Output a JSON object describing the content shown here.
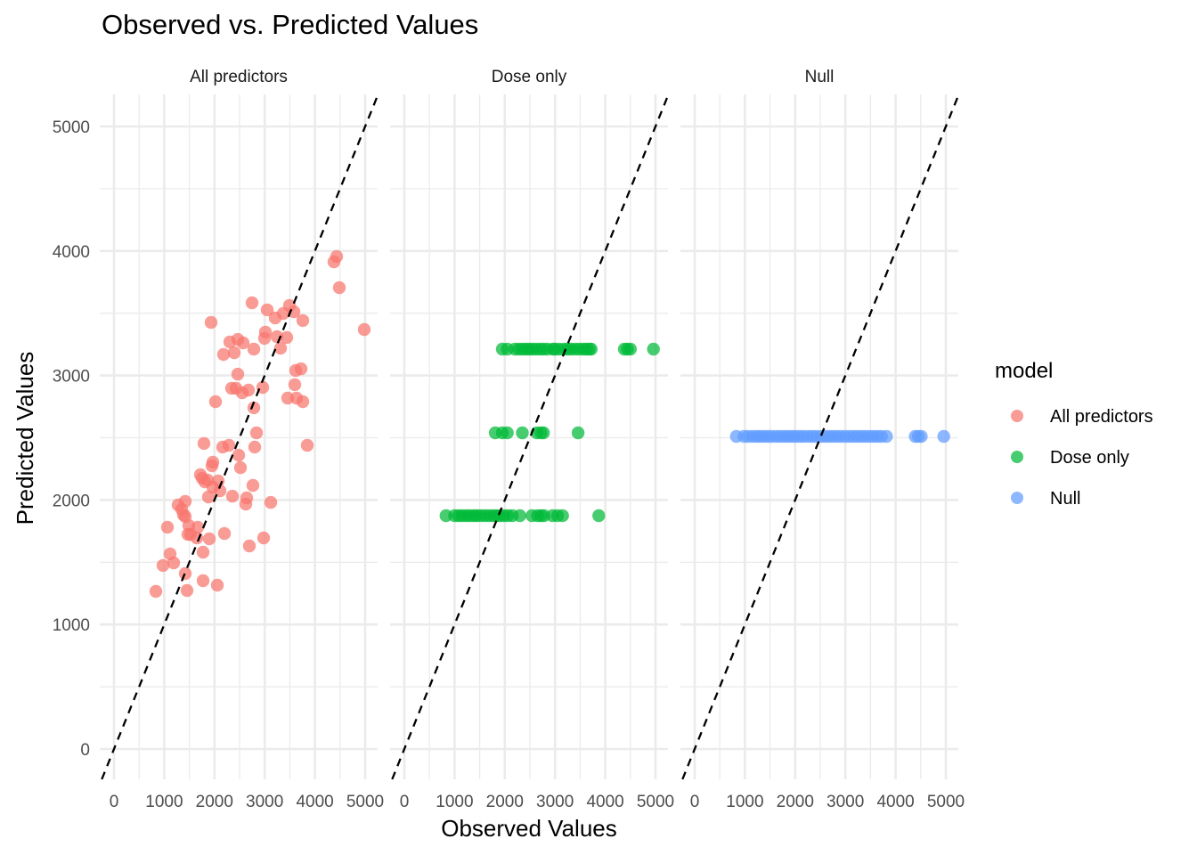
{
  "chart_data": {
    "type": "scatter",
    "title": "Observed vs. Predicted Values",
    "xlabel": "Observed Values",
    "ylabel": "Predicted Values",
    "xlim": [
      -300,
      5250
    ],
    "ylim": [
      -250,
      5200
    ],
    "x_ticks": [
      0,
      1000,
      2000,
      3000,
      4000,
      5000
    ],
    "y_ticks": [
      0,
      1000,
      2000,
      3000,
      4000,
      5000
    ],
    "x_tick_labels": [
      "0",
      "1000",
      "2000",
      "3000",
      "4000",
      "5000"
    ],
    "y_tick_labels": [
      "0",
      "1000",
      "2000",
      "3000",
      "4000",
      "5000"
    ],
    "grid": true,
    "reference_line": {
      "type": "identity",
      "style": "dashed",
      "color": "#000000",
      "intercept": 0,
      "slope": 1
    },
    "legend": {
      "title": "model",
      "position": "right",
      "entries": [
        {
          "label": "All predictors",
          "color": "#F8766D"
        },
        {
          "label": "Dose only",
          "color": "#00BA38"
        },
        {
          "label": "Null",
          "color": "#619CFF"
        }
      ]
    },
    "facets": [
      {
        "name": "All predictors",
        "color": "#F8766D",
        "points": [
          [
            833,
            1266
          ],
          [
            975,
            1474
          ],
          [
            1064,
            1781
          ],
          [
            1117,
            1567
          ],
          [
            1188,
            1495
          ],
          [
            1277,
            1960
          ],
          [
            1348,
            1924
          ],
          [
            1383,
            1881
          ],
          [
            1418,
            1989
          ],
          [
            1418,
            1867
          ],
          [
            1418,
            1409
          ],
          [
            1454,
            1273
          ],
          [
            1472,
            1724
          ],
          [
            1489,
            1795
          ],
          [
            1525,
            1724
          ],
          [
            1649,
            1695
          ],
          [
            1667,
            1781
          ],
          [
            1720,
            2203
          ],
          [
            1755,
            2175
          ],
          [
            1773,
            1581
          ],
          [
            1773,
            1352
          ],
          [
            1791,
            2454
          ],
          [
            1809,
            2146
          ],
          [
            1862,
            2160
          ],
          [
            1879,
            2024
          ],
          [
            1897,
            1688
          ],
          [
            1933,
            3426
          ],
          [
            1950,
            2275
          ],
          [
            1968,
            2303
          ],
          [
            1968,
            2103
          ],
          [
            2021,
            2790
          ],
          [
            2057,
            1316
          ],
          [
            2075,
            2153
          ],
          [
            2110,
            2074
          ],
          [
            2163,
            2425
          ],
          [
            2181,
            3169
          ],
          [
            2199,
            1731
          ],
          [
            2287,
            2439
          ],
          [
            2305,
            3269
          ],
          [
            2340,
            2897
          ],
          [
            2358,
            2031
          ],
          [
            2394,
            3183
          ],
          [
            2429,
            2897
          ],
          [
            2465,
            3290
          ],
          [
            2465,
            3011
          ],
          [
            2482,
            2360
          ],
          [
            2518,
            2260
          ],
          [
            2553,
            2861
          ],
          [
            2571,
            3262
          ],
          [
            2624,
            1967
          ],
          [
            2642,
            2017
          ],
          [
            2677,
            2883
          ],
          [
            2695,
            1631
          ],
          [
            2748,
            3584
          ],
          [
            2766,
            2117
          ],
          [
            2784,
            2740
          ],
          [
            2784,
            3212
          ],
          [
            2801,
            2425
          ],
          [
            2837,
            2539
          ],
          [
            2961,
            2904
          ],
          [
            2979,
            1695
          ],
          [
            2996,
            3298
          ],
          [
            3014,
            3348
          ],
          [
            3050,
            3527
          ],
          [
            3121,
            1981
          ],
          [
            3209,
            3462
          ],
          [
            3245,
            3312
          ],
          [
            3316,
            3219
          ],
          [
            3369,
            3498
          ],
          [
            3440,
            3305
          ],
          [
            3457,
            2818
          ],
          [
            3493,
            3562
          ],
          [
            3582,
            3512
          ],
          [
            3599,
            2926
          ],
          [
            3617,
            3040
          ],
          [
            3635,
            2818
          ],
          [
            3723,
            3054
          ],
          [
            3759,
            3441
          ],
          [
            3759,
            2790
          ],
          [
            3848,
            2439
          ],
          [
            4379,
            3913
          ],
          [
            4433,
            3956
          ],
          [
            4486,
            3705
          ],
          [
            4982,
            3369
          ]
        ]
      },
      {
        "name": "Dose only",
        "color": "#00BA38",
        "points": [
          [
            1950,
            3212
          ],
          [
            2050,
            3212
          ],
          [
            2200,
            3212
          ],
          [
            2280,
            3212
          ],
          [
            2350,
            3212
          ],
          [
            2420,
            3212
          ],
          [
            2480,
            3212
          ],
          [
            2550,
            3212
          ],
          [
            2620,
            3212
          ],
          [
            2700,
            3212
          ],
          [
            2770,
            3212
          ],
          [
            2850,
            3212
          ],
          [
            2960,
            3212
          ],
          [
            3000,
            3212
          ],
          [
            3080,
            3212
          ],
          [
            3180,
            3212
          ],
          [
            3250,
            3212
          ],
          [
            3320,
            3212
          ],
          [
            3400,
            3212
          ],
          [
            3480,
            3212
          ],
          [
            3560,
            3212
          ],
          [
            3620,
            3212
          ],
          [
            3680,
            3212
          ],
          [
            3720,
            3212
          ],
          [
            4380,
            3212
          ],
          [
            4440,
            3212
          ],
          [
            4500,
            3212
          ],
          [
            4960,
            3212
          ],
          [
            1810,
            2539
          ],
          [
            1950,
            2539
          ],
          [
            2050,
            2539
          ],
          [
            2350,
            2539
          ],
          [
            2640,
            2539
          ],
          [
            2720,
            2539
          ],
          [
            2770,
            2539
          ],
          [
            3460,
            2539
          ],
          [
            830,
            1874
          ],
          [
            1000,
            1874
          ],
          [
            1080,
            1874
          ],
          [
            1150,
            1874
          ],
          [
            1230,
            1874
          ],
          [
            1300,
            1874
          ],
          [
            1380,
            1874
          ],
          [
            1440,
            1874
          ],
          [
            1520,
            1874
          ],
          [
            1600,
            1874
          ],
          [
            1680,
            1874
          ],
          [
            1760,
            1874
          ],
          [
            1830,
            1874
          ],
          [
            1900,
            1874
          ],
          [
            1980,
            1874
          ],
          [
            2060,
            1874
          ],
          [
            2150,
            1874
          ],
          [
            2300,
            1874
          ],
          [
            2540,
            1874
          ],
          [
            2650,
            1874
          ],
          [
            2720,
            1874
          ],
          [
            2780,
            1874
          ],
          [
            2950,
            1874
          ],
          [
            3050,
            1874
          ],
          [
            3150,
            1874
          ],
          [
            3870,
            1874
          ]
        ]
      },
      {
        "name": "Null",
        "color": "#619CFF",
        "points": [
          [
            830,
            2511
          ],
          [
            980,
            2511
          ],
          [
            1060,
            2511
          ],
          [
            1150,
            2511
          ],
          [
            1230,
            2511
          ],
          [
            1300,
            2511
          ],
          [
            1380,
            2511
          ],
          [
            1460,
            2511
          ],
          [
            1530,
            2511
          ],
          [
            1620,
            2511
          ],
          [
            1700,
            2511
          ],
          [
            1780,
            2511
          ],
          [
            1850,
            2511
          ],
          [
            1930,
            2511
          ],
          [
            2000,
            2511
          ],
          [
            2080,
            2511
          ],
          [
            2160,
            2511
          ],
          [
            2250,
            2511
          ],
          [
            2330,
            2511
          ],
          [
            2410,
            2511
          ],
          [
            2500,
            2511
          ],
          [
            2580,
            2511
          ],
          [
            2660,
            2511
          ],
          [
            2740,
            2511
          ],
          [
            2820,
            2511
          ],
          [
            2900,
            2511
          ],
          [
            2990,
            2511
          ],
          [
            3080,
            2511
          ],
          [
            3160,
            2511
          ],
          [
            3240,
            2511
          ],
          [
            3320,
            2511
          ],
          [
            3400,
            2511
          ],
          [
            3480,
            2511
          ],
          [
            3560,
            2511
          ],
          [
            3640,
            2511
          ],
          [
            3720,
            2511
          ],
          [
            3820,
            2511
          ],
          [
            4390,
            2511
          ],
          [
            4450,
            2511
          ],
          [
            4510,
            2511
          ],
          [
            4960,
            2511
          ]
        ]
      }
    ]
  }
}
